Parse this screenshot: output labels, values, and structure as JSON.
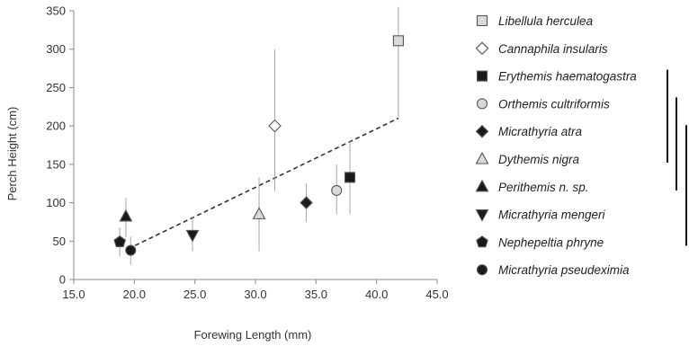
{
  "chart_data": {
    "type": "scatter",
    "title": "",
    "xlabel": "Forewing Length (mm)",
    "ylabel": "Perch Height (cm)",
    "xlim": [
      15.0,
      45.0
    ],
    "ylim": [
      0,
      350
    ],
    "xticks": [
      "15.0",
      "20.0",
      "25.0",
      "30.0",
      "35.0",
      "40.0",
      "45.0"
    ],
    "yticks": [
      "0",
      "50",
      "100",
      "150",
      "200",
      "250",
      "300",
      "350"
    ],
    "grid": false,
    "legend_position": "right",
    "series": [
      {
        "name": "Libellula herculea",
        "marker": "square",
        "fill": "#d9d9d9",
        "x": 41.8,
        "y": 311,
        "err_low": 210,
        "err_high": 355
      },
      {
        "name": "Cannaphila insularis",
        "marker": "diamond",
        "fill": "#ffffff",
        "x": 31.6,
        "y": 200,
        "err_low": 115,
        "err_high": 300
      },
      {
        "name": "Erythemis haematogastra",
        "marker": "square",
        "fill": "#1a1a1a",
        "x": 37.8,
        "y": 133,
        "err_low": 85,
        "err_high": 180
      },
      {
        "name": "Orthemis cultriformis",
        "marker": "circle",
        "fill": "#d9d9d9",
        "x": 36.7,
        "y": 116,
        "err_low": 85,
        "err_high": 150
      },
      {
        "name": "Micrathyria atra",
        "marker": "diamond",
        "fill": "#1a1a1a",
        "x": 34.2,
        "y": 100,
        "err_low": 75,
        "err_high": 125
      },
      {
        "name": "Dythemis nigra",
        "marker": "triangle-up",
        "fill": "#d9d9d9",
        "x": 30.3,
        "y": 85,
        "err_low": 37,
        "err_high": 133
      },
      {
        "name": "Perithemis n. sp.",
        "marker": "triangle-up",
        "fill": "#1a1a1a",
        "x": 19.3,
        "y": 82,
        "err_low": 55,
        "err_high": 106
      },
      {
        "name": "Micrathyria mengeri",
        "marker": "triangle-down",
        "fill": "#1a1a1a",
        "x": 24.8,
        "y": 58,
        "err_low": 37,
        "err_high": 82
      },
      {
        "name": "Nephepeltia phryne",
        "marker": "pentagon",
        "fill": "#1a1a1a",
        "x": 18.8,
        "y": 49,
        "err_low": 30,
        "err_high": 68
      },
      {
        "name": "Micrathyria pseudeximia",
        "marker": "circle",
        "fill": "#1a1a1a",
        "x": 19.7,
        "y": 38,
        "err_low": 20,
        "err_high": 56
      }
    ],
    "trendline": {
      "style": "dashed",
      "x": [
        19.5,
        41.8
      ],
      "y": [
        40,
        210
      ]
    },
    "groups": [
      {
        "from": "Erythemis haematogastra",
        "to": "Dythemis nigra"
      },
      {
        "from": "Orthemis cultriformis",
        "to": "Perithemis n. sp."
      },
      {
        "from": "Micrathyria atra",
        "to": "Nephepeltia phryne"
      }
    ]
  }
}
